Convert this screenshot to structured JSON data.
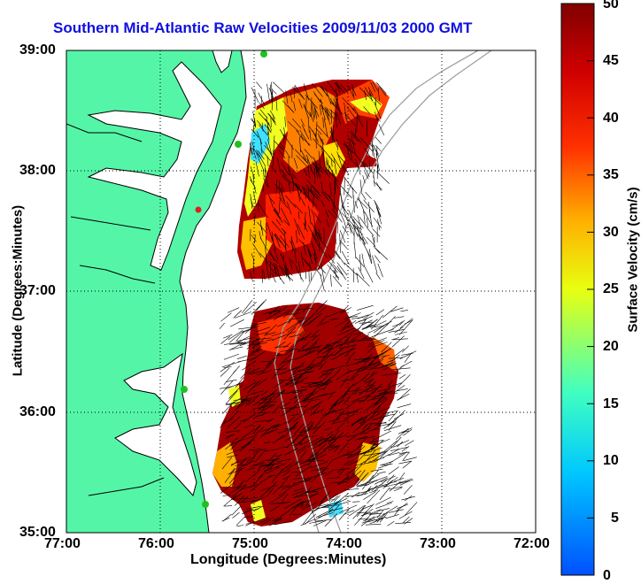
{
  "title": "Southern Mid-Atlantic Raw Velocities 2009/11/03 2000 GMT",
  "axes": {
    "xlabel": "Longitude (Degrees:Minutes)",
    "ylabel": "Latitude (Degrees:Minutes)",
    "x_ticks": [
      "77:00",
      "76:00",
      "75:00",
      "74:00",
      "73:00",
      "72:00"
    ],
    "y_ticks": [
      "39:00",
      "38:00",
      "37:00",
      "36:00",
      "35:00"
    ],
    "grid": "dotted"
  },
  "colorbar": {
    "label": "Surface Velocity (cm/s)",
    "ticks": [
      "50",
      "45",
      "40",
      "35",
      "30",
      "25",
      "20",
      "15",
      "10",
      "5",
      "0"
    ],
    "range": [
      0,
      50
    ],
    "colormap": "jet"
  },
  "colors": {
    "land": "#55f5a8",
    "title": "#1010e0",
    "arrows": "#000000",
    "bathymetry": "#a0a0a0"
  }
}
